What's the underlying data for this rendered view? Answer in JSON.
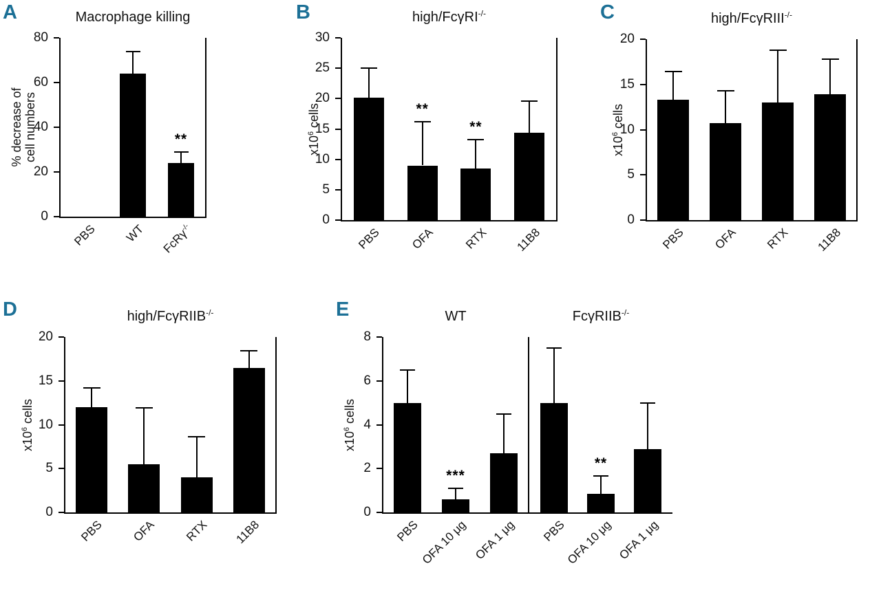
{
  "figure": {
    "background": "#ffffff",
    "panel_label_color": "#1c7096",
    "bar_color": "#000000"
  },
  "chart_data": [
    {
      "type": "bar",
      "panel": "A",
      "title": "Macrophage killing",
      "ylabel": "% decrease of\ncell numbers",
      "ylim": [
        0,
        80
      ],
      "yticks": [
        0,
        20,
        40,
        60,
        80
      ],
      "grid": false,
      "legend": "none",
      "spines": "left-bottom-right",
      "groups": [
        {
          "categories": [
            "PBS",
            "WT",
            "FcRγ^{-/-}"
          ],
          "values": [
            0,
            64,
            24
          ],
          "errors": [
            0,
            10,
            5
          ],
          "sig": [
            "",
            "",
            "**"
          ]
        }
      ]
    },
    {
      "type": "bar",
      "panel": "B",
      "title": "high/FcγRI^{-/-}",
      "ylabel": "x10^{6} cells",
      "ylim": [
        0,
        30
      ],
      "yticks": [
        0,
        5,
        10,
        15,
        20,
        25,
        30
      ],
      "grid": false,
      "legend": "none",
      "spines": "left-bottom-right",
      "groups": [
        {
          "categories": [
            "PBS",
            "OFA",
            "RTX",
            "11B8"
          ],
          "values": [
            20.2,
            9.0,
            8.5,
            14.4
          ],
          "errors": [
            4.8,
            7.2,
            4.7,
            5.2
          ],
          "sig": [
            "",
            "**",
            "**",
            ""
          ]
        }
      ]
    },
    {
      "type": "bar",
      "panel": "C",
      "title": "high/FcγRIII^{-/-}",
      "ylabel": "x10^{6} cells",
      "ylim": [
        0,
        20
      ],
      "yticks": [
        0,
        5,
        10,
        15,
        20
      ],
      "grid": false,
      "legend": "none",
      "spines": "left-bottom-right",
      "groups": [
        {
          "categories": [
            "PBS",
            "OFA",
            "RTX",
            "11B8"
          ],
          "values": [
            13.3,
            10.7,
            13.0,
            13.9
          ],
          "errors": [
            3.1,
            3.6,
            5.8,
            3.9
          ],
          "sig": [
            "",
            "",
            "",
            ""
          ]
        }
      ]
    },
    {
      "type": "bar",
      "panel": "D",
      "title": "high/FcγRIIB^{-/-}",
      "ylabel": "x10^{6} cells",
      "ylim": [
        0,
        20
      ],
      "yticks": [
        0,
        5,
        10,
        15,
        20
      ],
      "grid": false,
      "legend": "none",
      "spines": "left-bottom-right",
      "groups": [
        {
          "categories": [
            "PBS",
            "OFA",
            "RTX",
            "11B8"
          ],
          "values": [
            12.0,
            5.5,
            4.0,
            16.5
          ],
          "errors": [
            2.2,
            6.4,
            4.6,
            1.9
          ],
          "sig": [
            "",
            "",
            "",
            ""
          ]
        }
      ]
    },
    {
      "type": "bar",
      "panel": "E",
      "title": "",
      "ylabel": "x10^{6} cells",
      "ylim": [
        0,
        8
      ],
      "yticks": [
        0,
        2,
        4,
        6,
        8
      ],
      "grid": false,
      "legend": "none",
      "spines": "shared-left-bottom-divider",
      "groups": [
        {
          "title": "WT",
          "categories": [
            "PBS",
            "OFA 10 μg",
            "OFA 1 μg"
          ],
          "values": [
            5.0,
            0.6,
            2.7
          ],
          "errors": [
            1.5,
            0.5,
            1.8
          ],
          "sig": [
            "",
            "***",
            ""
          ]
        },
        {
          "title": "FcγRIIB^{-/-}",
          "categories": [
            "PBS",
            "OFA 10 μg",
            "OFA 1 μg"
          ],
          "values": [
            5.0,
            0.85,
            2.9
          ],
          "errors": [
            2.5,
            0.8,
            2.1
          ],
          "sig": [
            "",
            "**",
            ""
          ]
        }
      ]
    }
  ]
}
